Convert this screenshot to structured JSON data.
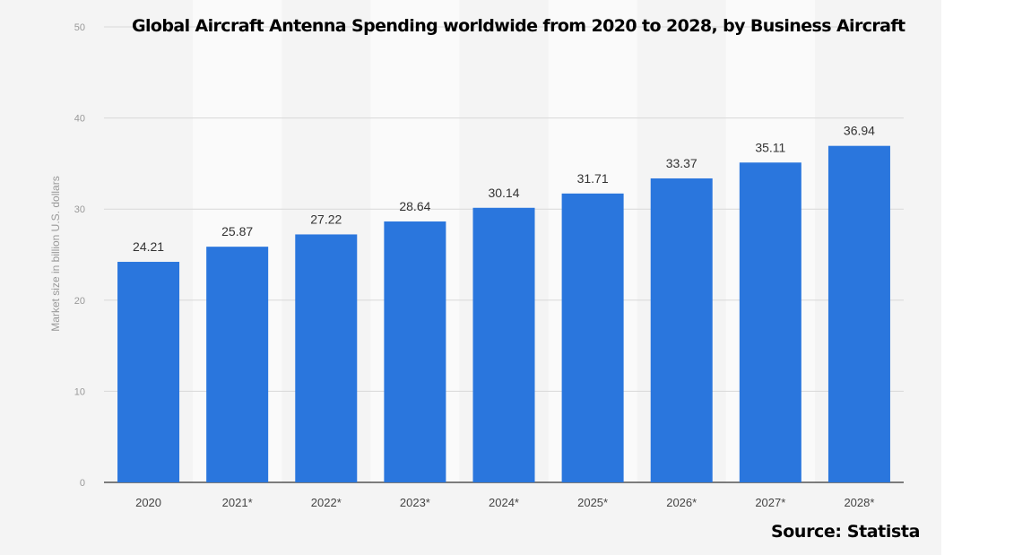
{
  "chart_data": {
    "type": "bar",
    "title": "Global Aircraft Antenna Spending worldwide from 2020 to 2028, by Business Aircraft",
    "categories": [
      "2020",
      "2021*",
      "2022*",
      "2023*",
      "2024*",
      "2025*",
      "2026*",
      "2027*",
      "2028*"
    ],
    "values": [
      24.21,
      25.87,
      27.22,
      28.64,
      30.14,
      31.71,
      33.37,
      35.11,
      36.94
    ],
    "value_labels": [
      "24.21",
      "25.87",
      "27.22",
      "28.64",
      "30.14",
      "31.71",
      "33.37",
      "35.11",
      "36.94"
    ],
    "xlabel": "",
    "ylabel": "Market size in billion U.S. dollars",
    "ylim": [
      0,
      50
    ],
    "yticks": [
      0,
      10,
      20,
      30,
      40,
      50
    ],
    "grid": true,
    "bar_color": "#2a76dd",
    "source": "Source: Statista"
  }
}
